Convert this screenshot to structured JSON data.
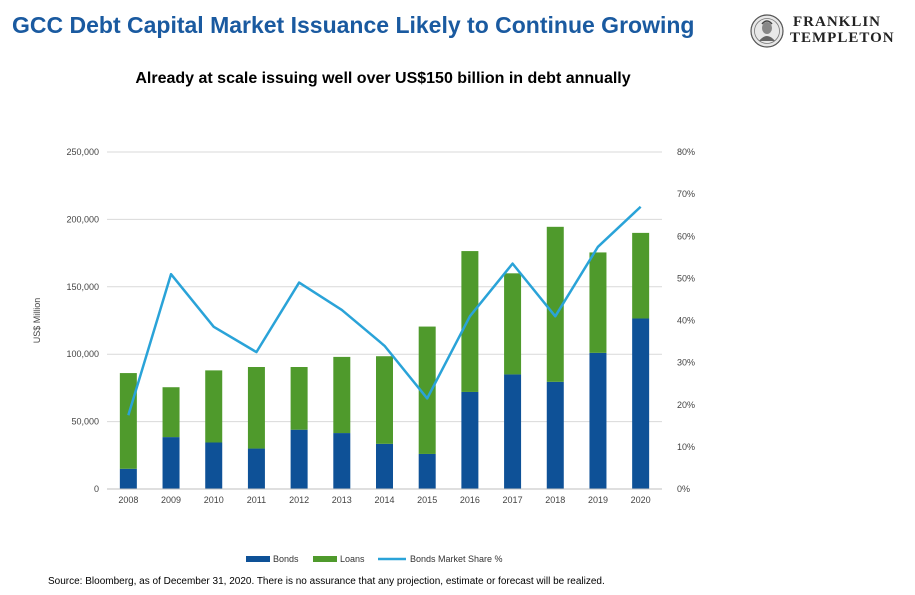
{
  "header": {
    "title": "GCC Debt Capital Market Issuance Likely to Continue Growing",
    "logo_line1": "FRANKLIN",
    "logo_line2": "TEMPLETON"
  },
  "footer": {
    "source": "Source: Bloomberg, as of December 31, 2020. There is no assurance that any projection, estimate or forecast will be realized."
  },
  "colors": {
    "title": "#1a5aa0",
    "bonds": "#0e5197",
    "loans": "#4f9a2c",
    "share_line": "#2aa3d8",
    "grid": "#d9d9d9"
  },
  "chart_data": {
    "type": "bar",
    "stacked": true,
    "title": "Already at scale issuing well over US$150 billion in debt annually",
    "ylabel": "US$ Million",
    "ylim": [
      0,
      250000
    ],
    "yticks": [
      "0",
      "50,000",
      "100,000",
      "150,000",
      "200,000",
      "250,000"
    ],
    "y2lim": [
      0,
      80
    ],
    "y2ticks": [
      "0%",
      "10%",
      "20%",
      "30%",
      "40%",
      "50%",
      "60%",
      "70%",
      "80%"
    ],
    "categories": [
      "2008",
      "2009",
      "2010",
      "2011",
      "2012",
      "2013",
      "2014",
      "2015",
      "2016",
      "2017",
      "2018",
      "2019",
      "2020"
    ],
    "series": [
      {
        "name": "Bonds",
        "kind": "bar",
        "values": [
          15000,
          38500,
          34500,
          30000,
          44000,
          41500,
          33500,
          26000,
          72000,
          85000,
          79500,
          101000,
          126500
        ]
      },
      {
        "name": "Loans",
        "kind": "bar",
        "values": [
          71000,
          37000,
          53500,
          60500,
          46500,
          56500,
          65000,
          94500,
          104500,
          75000,
          115000,
          74500,
          63500
        ]
      },
      {
        "name": "Bonds Market Share %",
        "kind": "line",
        "axis": "right",
        "values": [
          17.5,
          51,
          38.5,
          32.5,
          49,
          42.5,
          34,
          21.5,
          41,
          53.5,
          41,
          57.5,
          67
        ]
      }
    ],
    "grid": true,
    "legend_position": "bottom"
  }
}
